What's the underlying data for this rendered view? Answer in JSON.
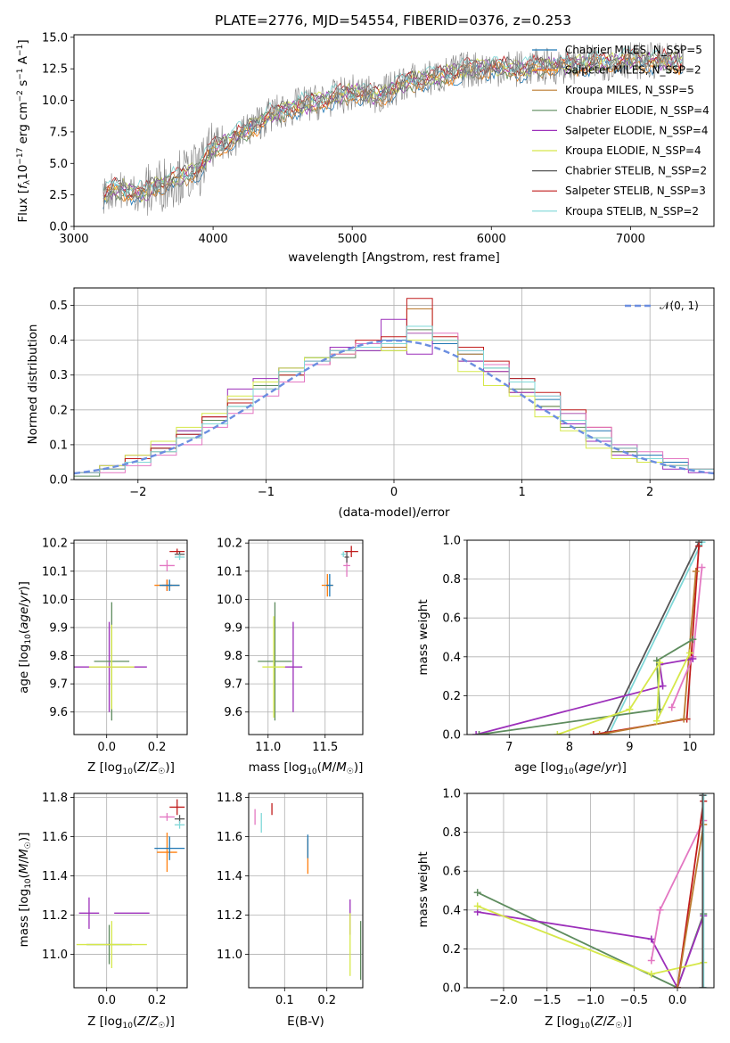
{
  "chart_data": [
    {
      "id": "spectrum",
      "type": "line",
      "title": "PLATE=2776, MJD=54554, FIBERID=0376, z=0.253",
      "xlabel": "wavelength [Angstrom, rest frame]",
      "ylabel": "Flux [f_λ 10^-17 erg cm^-2 s^-1 A^-1]",
      "xlim": [
        3000,
        7600
      ],
      "ylim": [
        0,
        15.2
      ],
      "xticks": [
        "3000",
        "4000",
        "5000",
        "6000",
        "7000"
      ],
      "yticks": [
        "0.0",
        "2.5",
        "5.0",
        "7.5",
        "10.0",
        "12.5",
        "15.0"
      ],
      "grid": false,
      "legend_position": "top-right",
      "data_line": {
        "color": "#808080",
        "x": [
          3200,
          3300,
          3400,
          3500,
          3600,
          3700,
          3800,
          3900,
          4000,
          4200,
          4400,
          4600,
          4800,
          5000,
          5200,
          5400,
          5600,
          5800,
          6000,
          6200,
          6400,
          6600,
          6800,
          7000,
          7200,
          7400
        ],
        "y": [
          2.4,
          3.0,
          2.8,
          2.6,
          3.2,
          3.7,
          4.1,
          4.5,
          6.2,
          7.3,
          8.8,
          9.5,
          10.0,
          10.6,
          10.4,
          11.5,
          11.8,
          12.4,
          12.6,
          12.5,
          12.7,
          12.8,
          13.0,
          13.2,
          13.1,
          13.0
        ]
      },
      "series": [
        {
          "name": "Chabrier MILES, N_SSP=5",
          "color": "#1f77b4"
        },
        {
          "name": "Salpeter MILES, N_SSP=2",
          "color": "#ff7f0e"
        },
        {
          "name": "Kroupa MILES, N_SSP=5",
          "color": "#bc7a2f"
        },
        {
          "name": "Chabrier ELODIE, N_SSP=4",
          "color": "#5e8c5e"
        },
        {
          "name": "Salpeter ELODIE, N_SSP=4",
          "color": "#9c2fba"
        },
        {
          "name": "Kroupa ELODIE, N_SSP=4",
          "color": "#d6e84a"
        },
        {
          "name": "Chabrier STELIB, N_SSP=2",
          "color": "#555555"
        },
        {
          "name": "Salpeter STELIB, N_SSP=3",
          "color": "#c01c1c"
        },
        {
          "name": "Kroupa STELIB, N_SSP=2",
          "color": "#7fd8d8"
        }
      ]
    },
    {
      "id": "residuals",
      "type": "line",
      "title": "",
      "xlabel": "(data-model)/error",
      "ylabel": "Normed distribution",
      "xlim": [
        -2.5,
        2.5
      ],
      "ylim": [
        0,
        0.55
      ],
      "xticks": [
        "−2",
        "−1",
        "0",
        "1",
        "2"
      ],
      "yticks": [
        "0.0",
        "0.1",
        "0.2",
        "0.3",
        "0.4",
        "0.5"
      ],
      "grid": true,
      "legend_position": "top-right",
      "normal_curve": {
        "name": "𝒩(0, 1)",
        "color": "#6b8ee0",
        "style": "dashed"
      },
      "step_bins": [
        -2.5,
        -2.3,
        -2.1,
        -1.9,
        -1.7,
        -1.5,
        -1.3,
        -1.1,
        -0.9,
        -0.7,
        -0.5,
        -0.3,
        -0.1,
        0.1,
        0.3,
        0.5,
        0.7,
        0.9,
        1.1,
        1.3,
        1.5,
        1.7,
        1.9,
        2.1,
        2.3,
        2.5
      ],
      "step_series": [
        {
          "color": "#1f77b4",
          "values": [
            0.02,
            0.04,
            0.06,
            0.09,
            0.13,
            0.17,
            0.22,
            0.27,
            0.32,
            0.35,
            0.37,
            0.38,
            0.4,
            0.42,
            0.39,
            0.36,
            0.33,
            0.29,
            0.23,
            0.19,
            0.14,
            0.1,
            0.07,
            0.05,
            0.03
          ]
        },
        {
          "color": "#bc7a2f",
          "values": [
            0.02,
            0.03,
            0.05,
            0.08,
            0.12,
            0.18,
            0.23,
            0.28,
            0.31,
            0.34,
            0.36,
            0.39,
            0.38,
            0.49,
            0.4,
            0.36,
            0.31,
            0.25,
            0.21,
            0.17,
            0.12,
            0.08,
            0.06,
            0.04,
            0.03
          ]
        },
        {
          "color": "#5e8c5e",
          "values": [
            0.01,
            0.03,
            0.05,
            0.09,
            0.14,
            0.17,
            0.21,
            0.27,
            0.3,
            0.35,
            0.35,
            0.37,
            0.37,
            0.43,
            0.4,
            0.34,
            0.32,
            0.26,
            0.21,
            0.15,
            0.11,
            0.08,
            0.05,
            0.04,
            0.03
          ]
        },
        {
          "color": "#9c2fba",
          "values": [
            0.02,
            0.04,
            0.07,
            0.1,
            0.14,
            0.18,
            0.26,
            0.29,
            0.32,
            0.34,
            0.38,
            0.37,
            0.46,
            0.36,
            0.4,
            0.34,
            0.31,
            0.25,
            0.2,
            0.16,
            0.11,
            0.07,
            0.05,
            0.03,
            0.02
          ]
        },
        {
          "color": "#d6e84a",
          "values": [
            0.02,
            0.04,
            0.07,
            0.11,
            0.15,
            0.19,
            0.24,
            0.28,
            0.32,
            0.35,
            0.36,
            0.38,
            0.37,
            0.4,
            0.4,
            0.31,
            0.27,
            0.24,
            0.18,
            0.14,
            0.09,
            0.06,
            0.05,
            0.04,
            0.03
          ]
        },
        {
          "color": "#c01c1c",
          "values": [
            0.02,
            0.03,
            0.06,
            0.09,
            0.13,
            0.18,
            0.22,
            0.26,
            0.3,
            0.33,
            0.37,
            0.4,
            0.41,
            0.52,
            0.41,
            0.38,
            0.34,
            0.29,
            0.25,
            0.2,
            0.15,
            0.09,
            0.06,
            0.04,
            0.03
          ]
        },
        {
          "color": "#e377c2",
          "values": [
            0.02,
            0.02,
            0.04,
            0.07,
            0.1,
            0.15,
            0.19,
            0.24,
            0.28,
            0.33,
            0.36,
            0.39,
            0.39,
            0.42,
            0.42,
            0.37,
            0.33,
            0.28,
            0.24,
            0.19,
            0.15,
            0.1,
            0.08,
            0.06,
            0.03
          ]
        },
        {
          "color": "#7fd8d8",
          "values": [
            0.02,
            0.03,
            0.05,
            0.08,
            0.12,
            0.16,
            0.21,
            0.26,
            0.31,
            0.34,
            0.37,
            0.38,
            0.39,
            0.44,
            0.4,
            0.37,
            0.32,
            0.28,
            0.24,
            0.17,
            0.12,
            0.09,
            0.06,
            0.04,
            0.03
          ]
        }
      ]
    },
    {
      "id": "age-vs-Z",
      "type": "scatter",
      "xlabel": "Z [log10(Z/Z☉)]",
      "ylabel": "age [log10(age/yr)]",
      "xlim": [
        -0.13,
        0.32
      ],
      "ylim": [
        9.52,
        10.21
      ],
      "xticks": [
        "0.0",
        "0.2"
      ],
      "yticks": [
        "9.6",
        "9.7",
        "9.8",
        "9.9",
        "10.0",
        "10.1",
        "10.2"
      ],
      "grid": true,
      "errorbars": [
        {
          "color": "#9c2fba",
          "x": 0.01,
          "y": 9.76,
          "xerr": 0.15,
          "yerr": 0.16
        },
        {
          "color": "#5e8c5e",
          "x": 0.02,
          "y": 9.78,
          "xerr": 0.07,
          "yerr": 0.21
        },
        {
          "color": "#d6e84a",
          "x": 0.02,
          "y": 9.76,
          "xerr": 0.09,
          "yerr": 0.15
        },
        {
          "color": "#c01c1c",
          "x": 0.24,
          "y": 10.05,
          "xerr": 0.02,
          "yerr": 0.02
        },
        {
          "color": "#ff7f0e",
          "x": 0.24,
          "y": 10.05,
          "xerr": 0.05,
          "yerr": 0.02
        },
        {
          "color": "#1f77b4",
          "x": 0.25,
          "y": 10.05,
          "xerr": 0.04,
          "yerr": 0.02
        },
        {
          "color": "#e377c2",
          "x": 0.24,
          "y": 10.12,
          "xerr": 0.03,
          "yerr": 0.02
        },
        {
          "color": "#c01c1c",
          "x": 0.28,
          "y": 10.17,
          "xerr": 0.03,
          "yerr": 0.01
        },
        {
          "color": "#555555",
          "x": 0.29,
          "y": 10.16,
          "xerr": 0.02,
          "yerr": 0.01
        },
        {
          "color": "#7fd8d8",
          "x": 0.29,
          "y": 10.15,
          "xerr": 0.02,
          "yerr": 0.01
        }
      ]
    },
    {
      "id": "age-vs-mass",
      "type": "scatter",
      "xlabel": "mass [log10(M/M☉)]",
      "ylabel": "",
      "xlim": [
        10.83,
        11.83
      ],
      "ylim": [
        9.52,
        10.21
      ],
      "xticks": [
        "11.0",
        "11.5"
      ],
      "yticks": [
        "9.6",
        "9.7",
        "9.8",
        "9.9",
        "10.0",
        "10.1",
        "10.2"
      ],
      "grid": true,
      "errorbars": [
        {
          "color": "#9c2fba",
          "x": 11.22,
          "y": 9.76,
          "xerr": 0.08,
          "yerr": 0.16
        },
        {
          "color": "#5e8c5e",
          "x": 11.06,
          "y": 9.78,
          "xerr": 0.15,
          "yerr": 0.21
        },
        {
          "color": "#d6e84a",
          "x": 11.05,
          "y": 9.76,
          "xerr": 0.1,
          "yerr": 0.18
        },
        {
          "color": "#ff7f0e",
          "x": 11.52,
          "y": 10.05,
          "xerr": 0.05,
          "yerr": 0.04
        },
        {
          "color": "#1f77b4",
          "x": 11.54,
          "y": 10.05,
          "xerr": 0.03,
          "yerr": 0.04
        },
        {
          "color": "#e377c2",
          "x": 11.69,
          "y": 10.12,
          "xerr": 0.03,
          "yerr": 0.04
        },
        {
          "color": "#c01c1c",
          "x": 11.73,
          "y": 10.17,
          "xerr": 0.06,
          "yerr": 0.02
        },
        {
          "color": "#7fd8d8",
          "x": 11.66,
          "y": 10.16,
          "xerr": 0.02,
          "yerr": 0.01
        },
        {
          "color": "#555555",
          "x": 11.69,
          "y": 10.15,
          "xerr": 0.02,
          "yerr": 0.02
        }
      ]
    },
    {
      "id": "massweight-vs-age",
      "type": "line",
      "xlabel": "age [log10(age/yr)]",
      "ylabel": "mass weight",
      "xlim": [
        6.3,
        10.4
      ],
      "ylim": [
        0,
        1.0
      ],
      "xticks": [
        "7",
        "8",
        "9",
        "10"
      ],
      "yticks": [
        "0.0",
        "0.2",
        "0.4",
        "0.6",
        "0.8",
        "1.0"
      ],
      "grid": true,
      "series": [
        {
          "color": "#7fd8d8",
          "x": [
            8.65,
            10.2
          ],
          "y": [
            0.0,
            0.99
          ]
        },
        {
          "color": "#555555",
          "x": [
            8.6,
            10.15
          ],
          "y": [
            0.0,
            0.99
          ]
        },
        {
          "color": "#c01c1c",
          "x": [
            8.4,
            9.95,
            10.15
          ],
          "y": [
            0.0,
            0.08,
            0.97
          ]
        },
        {
          "color": "#bc7a2f",
          "x": [
            8.5,
            9.9,
            10.1
          ],
          "y": [
            0.0,
            0.08,
            0.84
          ]
        },
        {
          "color": "#e377c2",
          "x": [
            9.7,
            10.05,
            10.2
          ],
          "y": [
            0.14,
            0.4,
            0.86
          ]
        },
        {
          "color": "#9c2fba",
          "x": [
            6.45,
            9.55,
            9.5,
            10.05
          ],
          "y": [
            0.0,
            0.25,
            0.36,
            0.39
          ]
        },
        {
          "color": "#5e8c5e",
          "x": [
            6.5,
            9.5,
            9.45,
            10.05
          ],
          "y": [
            0.0,
            0.13,
            0.38,
            0.49
          ]
        },
        {
          "color": "#d6e84a",
          "x": [
            7.8,
            9.0,
            9.5,
            9.45,
            10.0
          ],
          "y": [
            0.0,
            0.13,
            0.37,
            0.07,
            0.42
          ]
        }
      ]
    },
    {
      "id": "mass-vs-Z",
      "type": "scatter",
      "xlabel": "Z [log10(Z/Z☉)]",
      "ylabel": "mass [log10(M/M☉)]",
      "xlim": [
        -0.13,
        0.32
      ],
      "ylim": [
        10.83,
        11.82
      ],
      "xticks": [
        "0.0",
        "0.2"
      ],
      "yticks": [
        "11.0",
        "11.2",
        "11.4",
        "11.6",
        "11.8"
      ],
      "grid": true,
      "errorbars": [
        {
          "color": "#9c2fba",
          "x": -0.07,
          "y": 11.21,
          "xerr": 0.04,
          "yerr": 0.08
        },
        {
          "color": "#9c2fba",
          "x": 0.1,
          "y": 11.21,
          "xerr": 0.07,
          "yerr": 0.0
        },
        {
          "color": "#5e8c5e",
          "x": 0.01,
          "y": 11.05,
          "xerr": 0.09,
          "yerr": 0.1
        },
        {
          "color": "#d6e84a",
          "x": 0.02,
          "y": 11.05,
          "xerr": 0.14,
          "yerr": 0.12
        },
        {
          "color": "#ff7f0e",
          "x": 0.24,
          "y": 11.52,
          "xerr": 0.04,
          "yerr": 0.1
        },
        {
          "color": "#1f77b4",
          "x": 0.25,
          "y": 11.54,
          "xerr": 0.06,
          "yerr": 0.06
        },
        {
          "color": "#e377c2",
          "x": 0.24,
          "y": 11.7,
          "xerr": 0.03,
          "yerr": 0.02
        },
        {
          "color": "#c01c1c",
          "x": 0.28,
          "y": 11.75,
          "xerr": 0.03,
          "yerr": 0.04
        },
        {
          "color": "#555555",
          "x": 0.29,
          "y": 11.69,
          "xerr": 0.02,
          "yerr": 0.02
        },
        {
          "color": "#7fd8d8",
          "x": 0.29,
          "y": 11.66,
          "xerr": 0.02,
          "yerr": 0.02
        }
      ]
    },
    {
      "id": "mass-vs-ebv",
      "type": "scatter",
      "xlabel": "E(B-V)",
      "ylabel": "",
      "xlim": [
        0.015,
        0.285
      ],
      "ylim": [
        10.83,
        11.82
      ],
      "xticks": [
        "0.1",
        "0.2"
      ],
      "yticks": [
        "11.0",
        "11.2",
        "11.4",
        "11.6",
        "11.8"
      ],
      "grid": true,
      "errorbars": [
        {
          "color": "#e377c2",
          "x": 0.03,
          "y": 11.7,
          "xerr": 0,
          "yerr": 0.04
        },
        {
          "color": "#7fd8d8",
          "x": 0.045,
          "y": 11.67,
          "xerr": 0,
          "yerr": 0.05
        },
        {
          "color": "#c01c1c",
          "x": 0.07,
          "y": 11.74,
          "xerr": 0,
          "yerr": 0.03
        },
        {
          "color": "#ff7f0e",
          "x": 0.155,
          "y": 11.5,
          "xerr": 0,
          "yerr": 0.09
        },
        {
          "color": "#1f77b4",
          "x": 0.155,
          "y": 11.55,
          "xerr": 0,
          "yerr": 0.06
        },
        {
          "color": "#9c2fba",
          "x": 0.255,
          "y": 11.19,
          "xerr": 0,
          "yerr": 0.09
        },
        {
          "color": "#d6e84a",
          "x": 0.255,
          "y": 11.05,
          "xerr": 0,
          "yerr": 0.16
        },
        {
          "color": "#5e8c5e",
          "x": 0.28,
          "y": 11.02,
          "xerr": 0,
          "yerr": 0.15
        }
      ]
    },
    {
      "id": "massweight-vs-Z",
      "type": "line",
      "xlabel": "Z [log10(Z/Z☉)]",
      "ylabel": "mass weight",
      "xlim": [
        -2.42,
        0.42
      ],
      "ylim": [
        0,
        1.0
      ],
      "xticks": [
        "−2.0",
        "−1.5",
        "−1.0",
        "−0.5",
        "0.0"
      ],
      "yticks": [
        "0.0",
        "0.2",
        "0.4",
        "0.6",
        "0.8",
        "1.0"
      ],
      "grid": true,
      "series": [
        {
          "color": "#5e8c5e",
          "x": [
            -2.3,
            0.0,
            0.3
          ],
          "y": [
            0.49,
            0.0,
            0.38
          ]
        },
        {
          "color": "#9c2fba",
          "x": [
            -2.3,
            -0.3,
            0.0,
            0.3
          ],
          "y": [
            0.39,
            0.25,
            0.0,
            0.37
          ]
        },
        {
          "color": "#d6e84a",
          "x": [
            -2.3,
            -0.3,
            0.3
          ],
          "y": [
            0.42,
            0.07,
            0.13
          ]
        },
        {
          "color": "#e377c2",
          "x": [
            -0.3,
            -0.2,
            0.3
          ],
          "y": [
            0.14,
            0.4,
            0.86
          ]
        },
        {
          "color": "#c01c1c",
          "x": [
            0.0,
            0.3
          ],
          "y": [
            0.0,
            0.96
          ]
        },
        {
          "color": "#bc7a2f",
          "x": [
            0.0,
            0.3
          ],
          "y": [
            0.0,
            0.84
          ]
        },
        {
          "color": "#7fd8d8",
          "x": [
            0.3,
            0.3
          ],
          "y": [
            0.0,
            0.99
          ]
        },
        {
          "color": "#555555",
          "x": [
            0.29,
            0.29
          ],
          "y": [
            0.0,
            0.99
          ]
        }
      ]
    }
  ]
}
